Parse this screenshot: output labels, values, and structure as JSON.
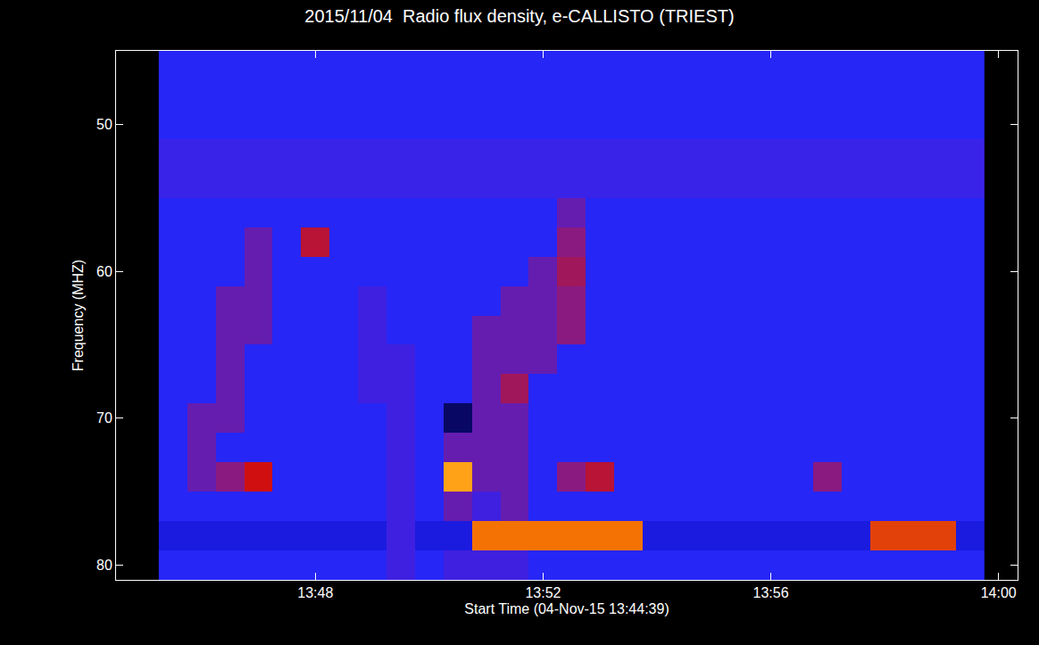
{
  "chart_data": {
    "type": "heatmap",
    "title": "2015/11/04  Radio flux density, e-CALLISTO (TRIEST)",
    "x_label": "Start Time (04-Nov-15 13:44:39)",
    "y_label": "Frequency (MHZ)",
    "x": [
      "2015-11-04 13:45:30",
      "2015-11-04 13:46:00",
      "2015-11-04 13:46:30",
      "2015-11-04 13:47:00",
      "2015-11-04 13:47:30",
      "2015-11-04 13:48:00",
      "2015-11-04 13:48:30",
      "2015-11-04 13:49:00",
      "2015-11-04 13:49:30",
      "2015-11-04 13:50:00",
      "2015-11-04 13:50:30",
      "2015-11-04 13:51:00",
      "2015-11-04 13:51:30",
      "2015-11-04 13:52:00",
      "2015-11-04 13:52:30",
      "2015-11-04 13:53:00",
      "2015-11-04 13:53:30",
      "2015-11-04 13:54:00",
      "2015-11-04 13:54:30",
      "2015-11-04 13:55:00",
      "2015-11-04 13:55:30",
      "2015-11-04 13:56:00",
      "2015-11-04 13:56:30",
      "2015-11-04 13:57:00",
      "2015-11-04 13:57:30",
      "2015-11-04 13:58:00",
      "2015-11-04 13:58:30",
      "2015-11-04 13:59:00",
      "2015-11-04 13:59:30"
    ],
    "y": [
      46,
      48,
      50,
      52,
      54,
      56,
      58,
      60,
      62,
      64,
      66,
      68,
      70,
      72,
      74,
      76,
      78,
      80
    ],
    "z": [
      [
        4,
        4,
        4,
        4,
        4,
        4,
        4,
        4,
        4,
        4,
        4,
        4,
        4,
        4,
        4,
        4,
        4,
        4,
        4,
        4,
        4,
        4,
        4,
        4,
        4,
        4,
        4,
        4,
        4
      ],
      [
        4,
        4,
        4,
        4,
        4,
        4,
        4,
        4,
        4,
        4,
        4,
        4,
        4,
        4,
        4,
        4,
        4,
        4,
        4,
        4,
        4,
        4,
        4,
        4,
        4,
        4,
        4,
        4,
        4
      ],
      [
        4,
        4,
        4,
        4,
        4,
        4,
        4,
        4,
        4,
        4,
        4,
        4,
        4,
        4,
        4,
        4,
        4,
        4,
        4,
        4,
        4,
        4,
        4,
        4,
        4,
        4,
        4,
        4,
        4
      ],
      [
        4.8,
        4.8,
        4.8,
        4.8,
        4.8,
        4.8,
        4.8,
        4.8,
        4.8,
        4.8,
        4.8,
        4.8,
        4.8,
        4.8,
        4.8,
        4.8,
        4.8,
        4.8,
        4.8,
        4.8,
        4.8,
        4.8,
        4.8,
        4.8,
        4.8,
        4.8,
        4.8,
        4.8,
        4.8
      ],
      [
        4.8,
        4.8,
        4.8,
        4.8,
        4.8,
        4.8,
        4.8,
        4.8,
        4.8,
        4.8,
        4.8,
        4.8,
        4.8,
        4.8,
        4.8,
        4.8,
        4.8,
        4.8,
        4.8,
        4.8,
        4.8,
        4.8,
        4.8,
        4.8,
        4.8,
        4.8,
        4.8,
        4.8,
        4.8
      ],
      [
        4,
        4,
        4,
        4,
        4,
        4,
        4,
        4,
        4,
        4,
        4,
        4,
        4,
        4,
        5.5,
        4,
        4,
        4,
        4,
        4,
        4,
        4,
        4,
        4,
        4,
        4,
        4,
        4,
        4
      ],
      [
        4,
        4,
        4,
        5.5,
        4,
        7,
        4,
        4,
        4,
        4,
        4,
        4,
        4,
        4,
        6,
        4,
        4,
        4,
        4,
        4,
        4,
        4,
        4,
        4,
        4,
        4,
        4,
        4,
        4
      ],
      [
        4,
        4,
        4,
        5.5,
        4,
        4,
        4,
        4,
        4,
        4,
        4,
        4,
        4,
        5.5,
        6.5,
        4,
        4,
        4,
        4,
        4,
        4,
        4,
        4,
        4,
        4,
        4,
        4,
        4,
        4
      ],
      [
        4,
        4,
        5.5,
        5.5,
        4,
        4,
        4,
        5,
        4,
        4,
        4,
        4,
        5.5,
        5.5,
        6,
        4,
        4,
        4,
        4,
        4,
        4,
        4,
        4,
        4,
        4,
        4,
        4,
        4,
        4
      ],
      [
        4,
        4,
        5.5,
        5.5,
        4,
        4,
        4,
        5,
        4,
        4,
        4,
        5.5,
        5.5,
        5.5,
        6,
        4,
        4,
        4,
        4,
        4,
        4,
        4,
        4,
        4,
        4,
        4,
        4,
        4,
        4
      ],
      [
        4,
        4,
        5.5,
        4,
        4,
        4,
        4,
        5,
        5,
        4,
        4,
        5.5,
        5.5,
        5.5,
        4,
        4,
        4,
        4,
        4,
        4,
        4,
        4,
        4,
        4,
        4,
        4,
        4,
        4,
        4
      ],
      [
        4,
        4,
        5.5,
        4,
        4,
        4,
        4,
        5,
        5,
        4,
        4,
        5.5,
        6.5,
        4,
        4,
        4,
        4,
        4,
        4,
        4,
        4,
        4,
        4,
        4,
        4,
        4,
        4,
        4,
        4
      ],
      [
        4,
        5.5,
        5.5,
        4,
        4,
        4,
        4,
        4,
        5,
        4,
        1.5,
        5.5,
        5.5,
        4,
        4,
        4,
        4,
        4,
        4,
        4,
        4,
        4,
        4,
        4,
        4,
        4,
        4,
        4,
        4
      ],
      [
        4,
        5.5,
        4,
        4,
        4,
        4,
        4,
        4,
        5,
        4,
        5.5,
        5.5,
        5.5,
        4,
        4,
        4,
        4,
        4,
        4,
        4,
        4,
        4,
        4,
        4,
        4,
        4,
        4,
        4,
        4
      ],
      [
        4,
        5.5,
        6,
        7.5,
        4,
        4,
        4,
        4,
        5,
        4,
        9,
        5.5,
        5.5,
        4,
        6,
        7,
        4,
        4,
        4,
        4,
        4,
        4,
        4,
        6,
        4,
        4,
        4,
        4,
        4
      ],
      [
        4,
        4,
        4,
        4,
        4,
        4,
        4,
        4,
        5,
        4,
        5.5,
        5,
        5.5,
        4,
        4,
        4,
        4,
        4,
        4,
        4,
        4,
        4,
        4,
        4,
        4,
        4,
        4,
        4,
        4
      ],
      [
        3.5,
        3.5,
        3.5,
        3.5,
        3.5,
        3.5,
        3.5,
        3.5,
        5,
        3.5,
        3.5,
        8.5,
        8.5,
        8.5,
        8.5,
        8.5,
        8.5,
        3.5,
        3.5,
        3.5,
        3.5,
        3.5,
        3.5,
        3.5,
        3.5,
        8,
        8,
        8,
        3.5
      ],
      [
        4,
        4,
        4,
        4,
        4,
        4,
        4,
        4,
        5,
        4,
        5,
        5,
        5,
        4,
        4,
        4,
        4,
        4,
        4,
        4,
        4,
        4,
        4,
        4,
        4,
        4,
        4,
        4,
        4
      ]
    ],
    "zlim": [
      0,
      10
    ],
    "xlim": [
      "2015-11-04 13:44:30",
      "2015-11-04 14:00:20"
    ],
    "xticks": [
      {
        "value": "2015-11-04 13:48:00",
        "label": "13:48"
      },
      {
        "value": "2015-11-04 13:52:00",
        "label": "13:52"
      },
      {
        "value": "2015-11-04 13:56:00",
        "label": "13:56"
      },
      {
        "value": "2015-11-04 14:00:00",
        "label": "14:00"
      }
    ],
    "ylim": [
      81,
      45
    ],
    "yticks": [
      50,
      60,
      70,
      80
    ],
    "grid": false
  }
}
